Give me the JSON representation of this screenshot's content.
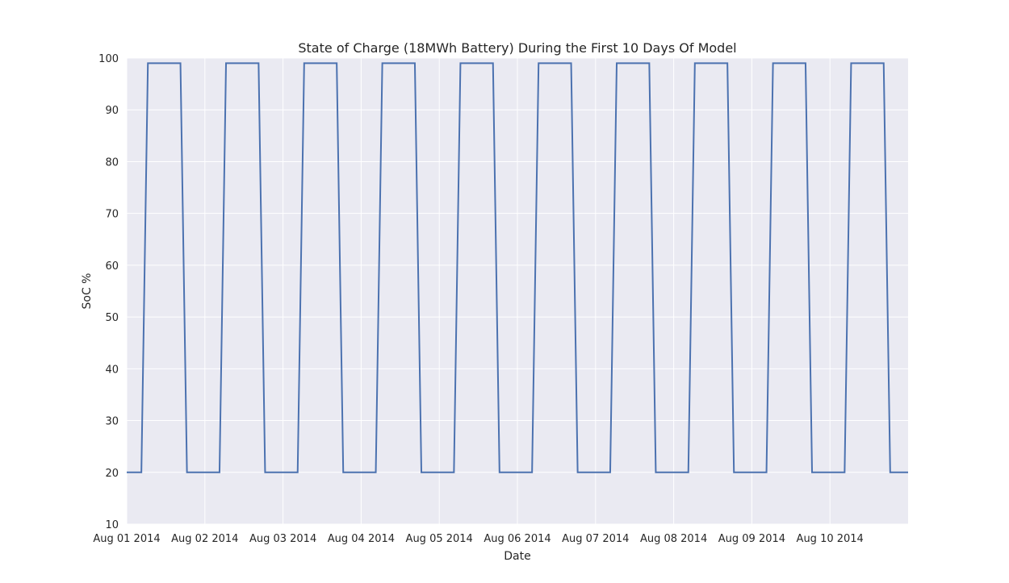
{
  "chart_data": {
    "type": "line",
    "title": "State of Charge (18MWh Battery) During the First 10 Days Of Model",
    "xlabel": "Date",
    "ylabel": "SoC %",
    "xlim": [
      "2014-08-01T00:00",
      "2014-08-11T00:00"
    ],
    "ylim": [
      10,
      100
    ],
    "yticks": [
      10,
      20,
      30,
      40,
      50,
      60,
      70,
      80,
      90,
      100
    ],
    "xticks": [
      {
        "date": "2014-08-01T00:00",
        "label": "Aug 01 2014"
      },
      {
        "date": "2014-08-02T00:00",
        "label": "Aug 02 2014"
      },
      {
        "date": "2014-08-03T00:00",
        "label": "Aug 03 2014"
      },
      {
        "date": "2014-08-04T00:00",
        "label": "Aug 04 2014"
      },
      {
        "date": "2014-08-05T00:00",
        "label": "Aug 05 2014"
      },
      {
        "date": "2014-08-06T00:00",
        "label": "Aug 06 2014"
      },
      {
        "date": "2014-08-07T00:00",
        "label": "Aug 07 2014"
      },
      {
        "date": "2014-08-08T00:00",
        "label": "Aug 08 2014"
      },
      {
        "date": "2014-08-09T00:00",
        "label": "Aug 09 2014"
      },
      {
        "date": "2014-08-10T00:00",
        "label": "Aug 10 2014"
      }
    ],
    "grid": true,
    "legend": "none",
    "colors": {
      "line": "#4c72b0",
      "plot_bg": "#eaeaf2",
      "grid": "#ffffff"
    },
    "series": [
      {
        "x": [
          "2014-08-01T00:00",
          "2014-08-01T04:30",
          "2014-08-01T06:30",
          "2014-08-01T16:30",
          "2014-08-01T18:30",
          "2014-08-02T04:30",
          "2014-08-02T06:30",
          "2014-08-02T16:30",
          "2014-08-02T18:30",
          "2014-08-03T04:30",
          "2014-08-03T06:30",
          "2014-08-03T16:30",
          "2014-08-03T18:30",
          "2014-08-04T04:30",
          "2014-08-04T06:30",
          "2014-08-04T16:30",
          "2014-08-04T18:30",
          "2014-08-05T04:30",
          "2014-08-05T06:30",
          "2014-08-05T16:30",
          "2014-08-05T18:30",
          "2014-08-06T04:30",
          "2014-08-06T06:30",
          "2014-08-06T16:30",
          "2014-08-06T18:30",
          "2014-08-07T04:30",
          "2014-08-07T06:30",
          "2014-08-07T16:30",
          "2014-08-07T18:30",
          "2014-08-08T04:30",
          "2014-08-08T06:30",
          "2014-08-08T16:30",
          "2014-08-08T18:30",
          "2014-08-09T04:30",
          "2014-08-09T06:30",
          "2014-08-09T16:30",
          "2014-08-09T18:30",
          "2014-08-10T04:30",
          "2014-08-10T06:30",
          "2014-08-10T16:30",
          "2014-08-10T18:30",
          "2014-08-11T00:00"
        ],
        "y": [
          20,
          20,
          99,
          99,
          20,
          20,
          99,
          99,
          20,
          20,
          99,
          99,
          20,
          20,
          99,
          99,
          20,
          20,
          99,
          99,
          20,
          20,
          99,
          99,
          20,
          20,
          99,
          99,
          20,
          20,
          99,
          99,
          20,
          20,
          99,
          99,
          20,
          20,
          99,
          99,
          20,
          20
        ]
      }
    ]
  }
}
